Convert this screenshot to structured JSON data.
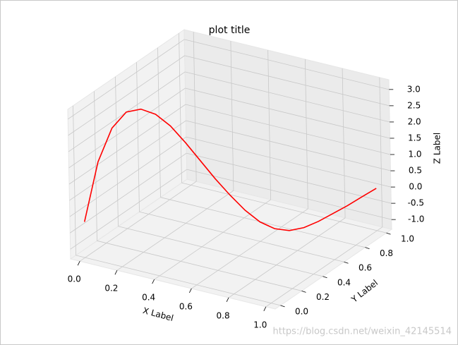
{
  "chart_data": {
    "type": "line3d",
    "title": "plot title",
    "xlabel": "X Label",
    "ylabel": "Y Label",
    "zlabel": "Z Label",
    "watermark": "https://blog.csdn.net/weixin_42145514",
    "color": "red",
    "x": [
      0,
      0.05,
      0.1,
      0.15,
      0.2,
      0.25,
      0.3,
      0.35,
      0.4,
      0.45,
      0.5,
      0.55,
      0.6,
      0.65,
      0.7,
      0.75,
      0.8,
      0.85,
      0.9,
      0.95,
      1.0
    ],
    "y": [
      0,
      0.05,
      0.1,
      0.15,
      0.2,
      0.25,
      0.3,
      0.35,
      0.4,
      0.45,
      0.5,
      0.55,
      0.6,
      0.65,
      0.7,
      0.75,
      0.8,
      0.85,
      0.9,
      0.95,
      1.0
    ],
    "z": [
      -0.2,
      1.6,
      2.6,
      3.05,
      3.1,
      2.9,
      2.5,
      1.95,
      1.35,
      0.75,
      0.2,
      -0.3,
      -0.7,
      -0.95,
      -1.05,
      -1.0,
      -0.85,
      -0.65,
      -0.45,
      -0.22,
      0.0
    ],
    "xlim": [
      -0.05,
      1.05
    ],
    "ylim": [
      -0.05,
      1.05
    ],
    "zlim": [
      -1.3,
      3.3
    ],
    "xticks": [
      {
        "value": 0,
        "label": "0.0"
      },
      0.2,
      0.4,
      0.6,
      0.8,
      {
        "value": 1,
        "label": "1.0"
      }
    ],
    "yticks": [
      {
        "value": 0,
        "label": "0.0"
      },
      0.2,
      0.4,
      0.6,
      0.8,
      {
        "value": 1,
        "label": "1.0"
      }
    ],
    "zticks": [
      {
        "value": -1,
        "label": "-1.0"
      },
      -0.5,
      {
        "value": 0,
        "label": "0.0"
      },
      0.5,
      {
        "value": 1,
        "label": "1.0"
      },
      1.5,
      {
        "value": 2,
        "label": "2.0"
      },
      2.5,
      {
        "value": 3,
        "label": "3.0"
      }
    ],
    "grid": true
  }
}
